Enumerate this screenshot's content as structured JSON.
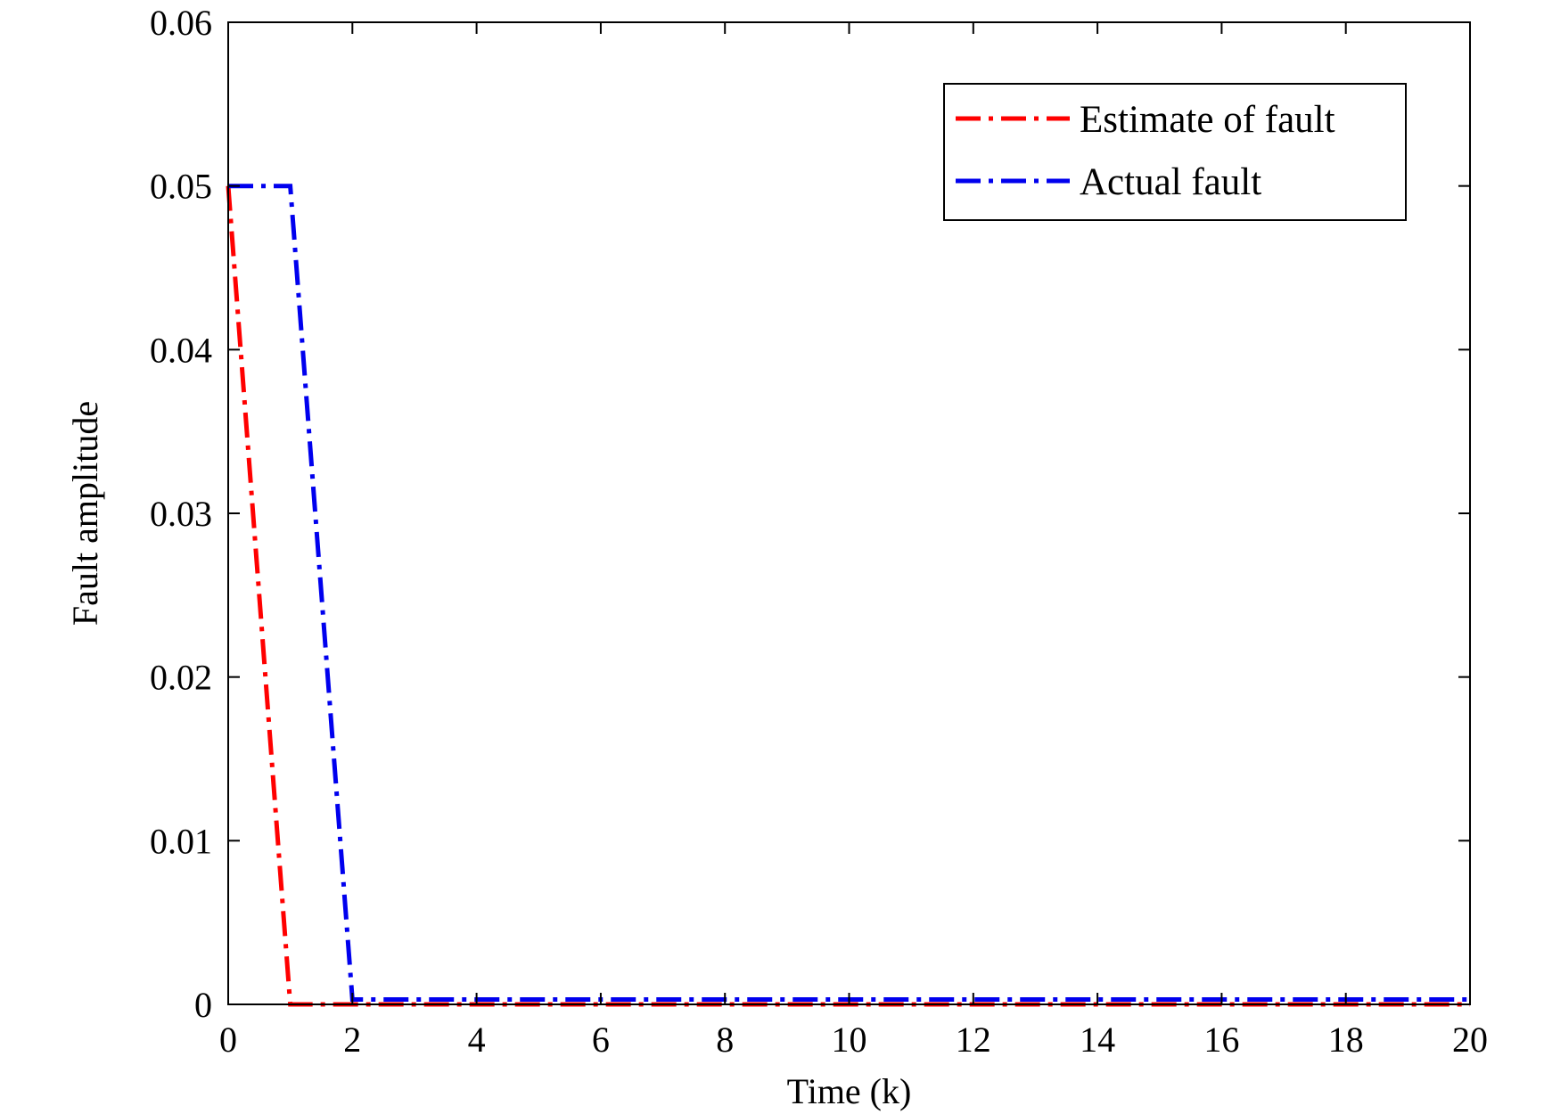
{
  "chart_data": {
    "type": "line",
    "xlabel": "Time (k)",
    "ylabel": "Fault amplitude",
    "xlim": [
      0,
      20
    ],
    "ylim": [
      0,
      0.06
    ],
    "x_ticks": [
      0,
      2,
      4,
      6,
      8,
      10,
      12,
      14,
      16,
      18,
      20
    ],
    "y_ticks": [
      0,
      0.01,
      0.02,
      0.03,
      0.04,
      0.05,
      0.06
    ],
    "x_tick_labels": [
      "0",
      "2",
      "4",
      "6",
      "8",
      "10",
      "12",
      "14",
      "16",
      "18",
      "20"
    ],
    "y_tick_labels": [
      "0",
      "0.01",
      "0.02",
      "0.03",
      "0.04",
      "0.05",
      "0.06"
    ],
    "grid": false,
    "legend_position": "top-right",
    "series": [
      {
        "name": "Estimate of fault",
        "color": "#ff0000",
        "style": "dash-dot",
        "x": [
          0,
          1,
          2,
          3,
          4,
          5,
          6,
          7,
          8,
          9,
          10,
          11,
          12,
          13,
          14,
          15,
          16,
          17,
          18,
          19,
          20
        ],
        "y": [
          0.05,
          0,
          0,
          0,
          0,
          0,
          0,
          0,
          0,
          0,
          0,
          0,
          0,
          0,
          0,
          0,
          0,
          0,
          0,
          0,
          0
        ]
      },
      {
        "name": "Actual fault",
        "color": "#0000ee",
        "style": "dash-dot",
        "x": [
          0,
          1,
          2,
          3,
          4,
          5,
          6,
          7,
          8,
          9,
          10,
          11,
          12,
          13,
          14,
          15,
          16,
          17,
          18,
          19,
          20
        ],
        "y": [
          0.05,
          0.05,
          0.0003,
          0.0003,
          0.0003,
          0.0003,
          0.0003,
          0.0003,
          0.0003,
          0.0003,
          0.0003,
          0.0003,
          0.0003,
          0.0003,
          0.0003,
          0.0003,
          0.0003,
          0.0003,
          0.0003,
          0.0003,
          0.0003
        ]
      }
    ]
  }
}
